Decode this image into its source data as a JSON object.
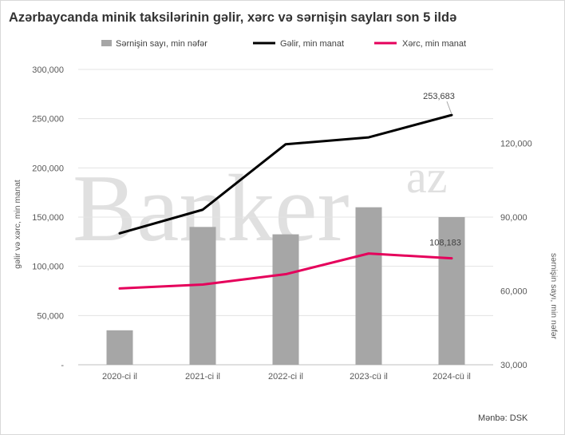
{
  "chart_data": {
    "type": "bar+line",
    "title": "Azərbaycanda minik taksilərinin gəlir, xərc və sərnişin sayları son 5 ildə",
    "categories": [
      "2020-ci il",
      "2021-ci il",
      "2022-ci il",
      "2023-cü il",
      "2024-cü il"
    ],
    "left_axis": {
      "label": "gəlir və xərc, min manat",
      "ylim": [
        0,
        300000
      ],
      "ticks": [
        "-",
        "50,000",
        "100,000",
        "150,000",
        "200,000",
        "250,000",
        "300,000"
      ],
      "tick_values": [
        0,
        50000,
        100000,
        150000,
        200000,
        250000,
        300000
      ]
    },
    "right_axis": {
      "label": "sərnişin sayı, min nəfər",
      "ylim": [
        30000,
        150000
      ],
      "ticks": [
        "30,000",
        "60,000",
        "90,000",
        "120,000"
      ],
      "tick_values": [
        30000,
        60000,
        90000,
        120000
      ]
    },
    "series": [
      {
        "name": "Sərnişin sayı, min nəfər",
        "kind": "bar",
        "axis": "right",
        "color": "#a6a6a6",
        "values": [
          44000,
          86000,
          83000,
          94000,
          90000
        ]
      },
      {
        "name": "Gəlir, min manat",
        "kind": "line",
        "axis": "left",
        "color": "#000000",
        "values": [
          133500,
          157500,
          224000,
          231000,
          253683
        ],
        "end_label": "253,683"
      },
      {
        "name": "Xərc, min manat",
        "kind": "line",
        "axis": "left",
        "color": "#e5005b",
        "values": [
          77500,
          81500,
          92000,
          113000,
          108183
        ],
        "end_label": "108,183"
      }
    ],
    "legend_position": "top",
    "grid": "horizontal",
    "source": "Mənbə:  DSK"
  },
  "watermark": {
    "main": "Banker",
    "sup": "az"
  }
}
